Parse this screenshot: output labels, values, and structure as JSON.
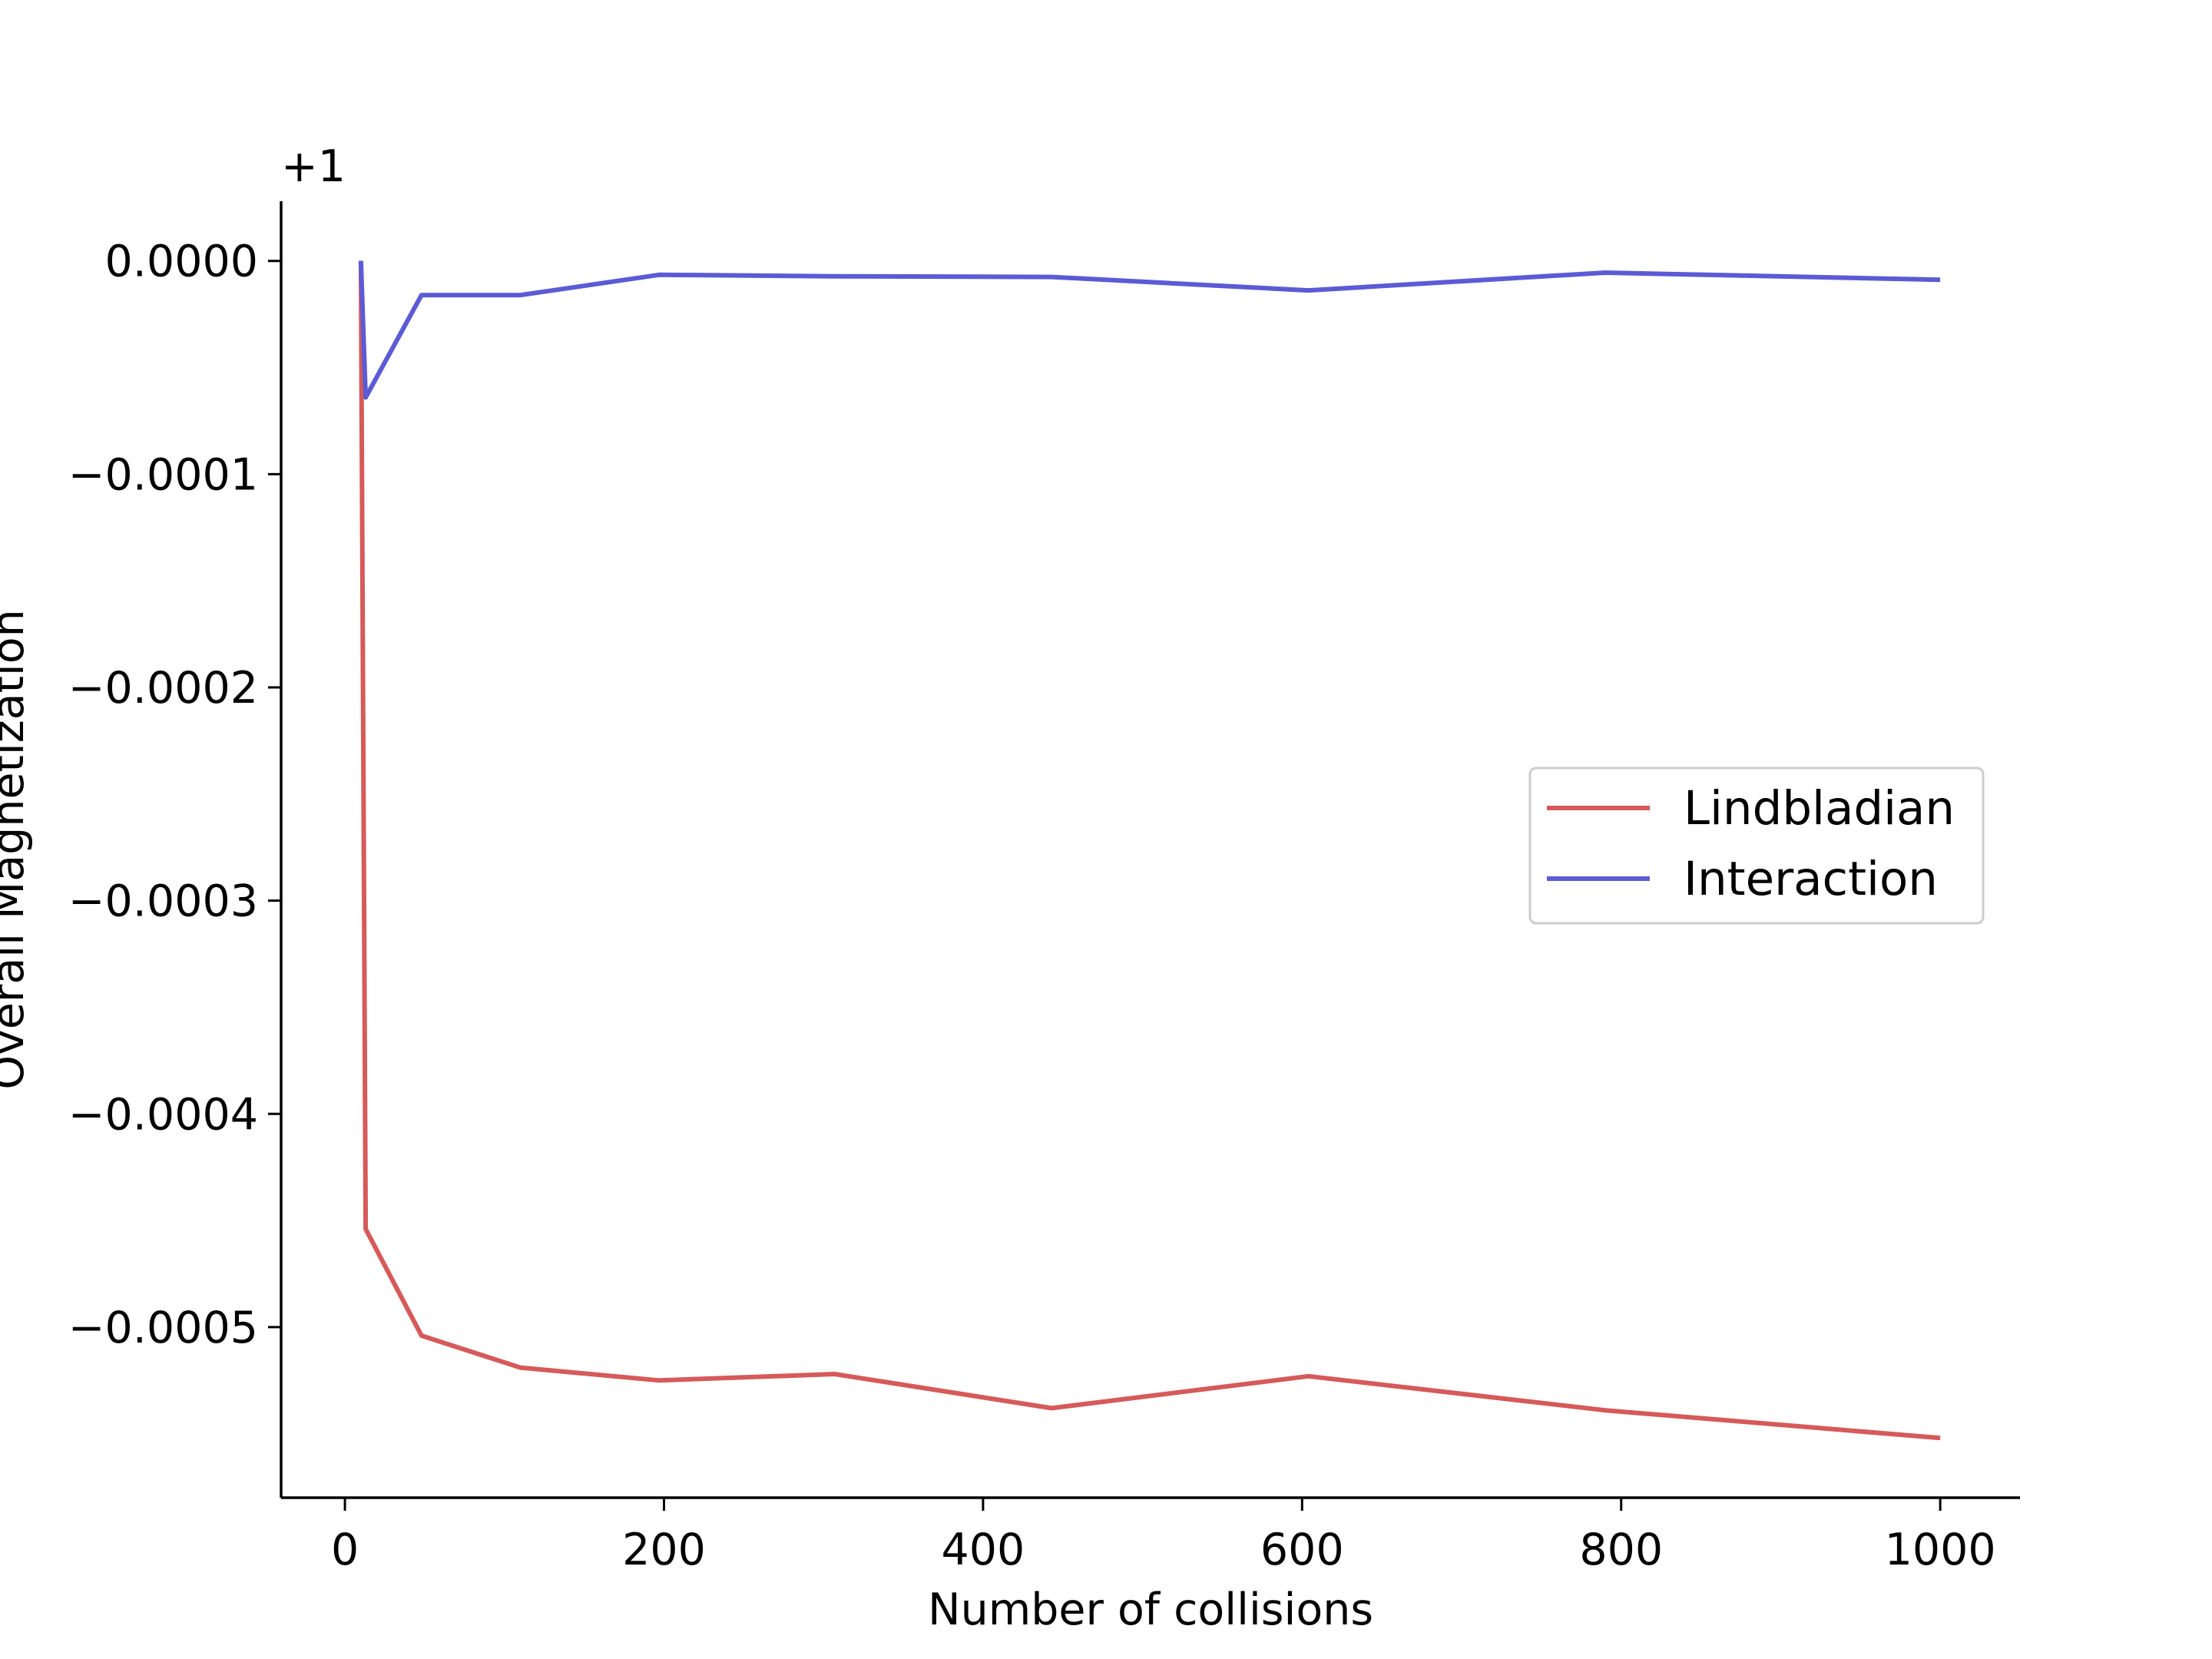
{
  "chart_data": {
    "type": "line",
    "title": "",
    "xlabel": "Number of collisions",
    "ylabel": "Overall Magnetization",
    "y_offset_label": "+1",
    "xlim": [
      -40,
      1050
    ],
    "ylim": [
      -0.00058,
      2.8e-05
    ],
    "x_ticks": [
      0,
      200,
      400,
      600,
      800,
      1000
    ],
    "x_tick_labels": [
      "0",
      "200",
      "400",
      "600",
      "800",
      "1000"
    ],
    "y_ticks": [
      0.0,
      -0.0001,
      -0.0002,
      -0.0003,
      -0.0004,
      -0.0005
    ],
    "y_tick_labels": [
      "0.0000",
      "−0.0001",
      "−0.0002",
      "−0.0003",
      "−0.0004",
      "−0.0005"
    ],
    "grid": false,
    "legend_position": "center-right",
    "series": [
      {
        "name": "Lindbladian",
        "color": "#d65a5a",
        "x": [
          10,
          13,
          48,
          110,
          197,
          307,
          443,
          604,
          790,
          1000
        ],
        "y": [
          0.0,
          -0.000454,
          -0.000504,
          -0.000519,
          -0.000525,
          -0.000522,
          -0.000538,
          -0.000523,
          -0.000539,
          -0.000552
        ]
      },
      {
        "name": "Interaction",
        "color": "#5b5bd6",
        "x": [
          10,
          13,
          48,
          110,
          197,
          307,
          443,
          604,
          790,
          1000
        ],
        "y": [
          0.0,
          -6.4e-05,
          -1.6e-05,
          -1.6e-05,
          -6.5e-06,
          -7.2e-06,
          -7.5e-06,
          -1.38e-05,
          -5.5e-06,
          -8.8e-06
        ]
      }
    ]
  }
}
